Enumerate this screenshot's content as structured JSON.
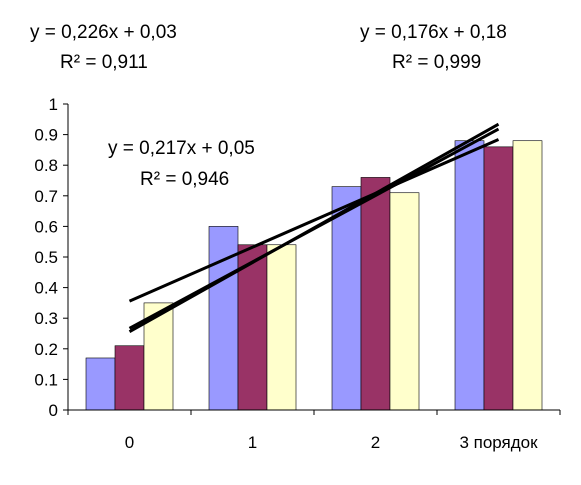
{
  "chart_data": {
    "type": "bar",
    "categories": [
      "0",
      "1",
      "2",
      "3 порядок"
    ],
    "series": [
      {
        "values": [
          0.17,
          0.6,
          0.73,
          0.88
        ]
      },
      {
        "values": [
          0.21,
          0.54,
          0.76,
          0.86
        ]
      },
      {
        "values": [
          0.35,
          0.54,
          0.71,
          0.88
        ]
      }
    ],
    "series_colors": [
      "#9999ff",
      "#993366",
      "#ffffcc"
    ],
    "ylim": [
      0,
      1
    ],
    "yticks": [
      "0",
      "0.1",
      "0.2",
      "0.3",
      "0.4",
      "0.5",
      "0.6",
      "0.7",
      "0.8",
      "0.9",
      "1"
    ],
    "trendlines": [
      {
        "equation": "y = 0,226x + 0,03",
        "r2": "R² = 0,911",
        "slope": 0.226,
        "intercept": 0.03
      },
      {
        "equation": "y = 0,176x + 0,18",
        "r2": "R² = 0,999",
        "slope": 0.176,
        "intercept": 0.18
      },
      {
        "equation": "y = 0,217x + 0,05",
        "r2": "R² = 0,946",
        "slope": 0.217,
        "intercept": 0.05
      }
    ],
    "grid": false,
    "legend": "none",
    "bar_stroke": "#000000",
    "line_color": "#000000"
  }
}
